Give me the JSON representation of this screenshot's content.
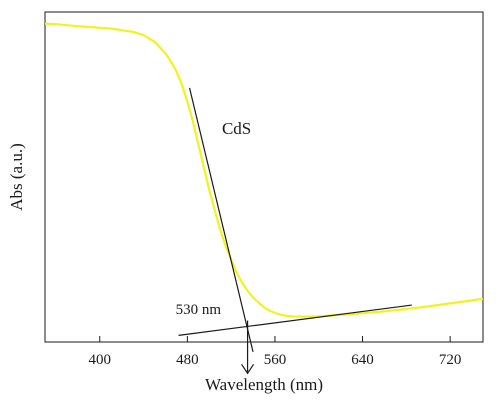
{
  "chart_data": {
    "type": "line",
    "title": "",
    "xlabel": "Wavelength (nm)",
    "ylabel": "Abs (a.u.)",
    "xlim": [
      350,
      750
    ],
    "ylim": [
      0,
      1
    ],
    "x_ticks": [
      400,
      480,
      560,
      640,
      720
    ],
    "y_ticks": [],
    "grid": false,
    "legend": "none",
    "series": [
      {
        "color": "#f2f21e",
        "x": [
          350,
          360,
          370,
          380,
          390,
          400,
          410,
          420,
          430,
          440,
          450,
          460,
          465,
          470,
          475,
          480,
          485,
          490,
          495,
          500,
          505,
          510,
          515,
          520,
          525,
          530,
          535,
          540,
          545,
          550,
          555,
          560,
          565,
          570,
          575,
          580,
          590,
          600,
          620,
          640,
          660,
          680,
          700,
          720,
          740,
          750
        ],
        "y": [
          0.965,
          0.963,
          0.96,
          0.957,
          0.955,
          0.952,
          0.95,
          0.945,
          0.94,
          0.93,
          0.91,
          0.875,
          0.85,
          0.82,
          0.78,
          0.73,
          0.67,
          0.6,
          0.53,
          0.46,
          0.4,
          0.34,
          0.29,
          0.25,
          0.21,
          0.18,
          0.155,
          0.135,
          0.12,
          0.105,
          0.095,
          0.088,
          0.083,
          0.08,
          0.078,
          0.077,
          0.077,
          0.078,
          0.082,
          0.087,
          0.093,
          0.1,
          0.108,
          0.117,
          0.126,
          0.131
        ]
      }
    ],
    "annotations": [
      {
        "text": "CdS",
        "x": 525,
        "y": 0.63
      },
      {
        "text": "530 nm",
        "x": 490,
        "y": 0.085
      }
    ],
    "tangent_lines": [
      {
        "x": [
          482,
          540
        ],
        "y": [
          0.77,
          -0.03
        ]
      },
      {
        "x": [
          472,
          685
        ],
        "y": [
          0.02,
          0.112
        ]
      }
    ],
    "arrow": {
      "x": [
        535,
        535
      ],
      "y": [
        0.065,
        -0.095
      ]
    }
  }
}
